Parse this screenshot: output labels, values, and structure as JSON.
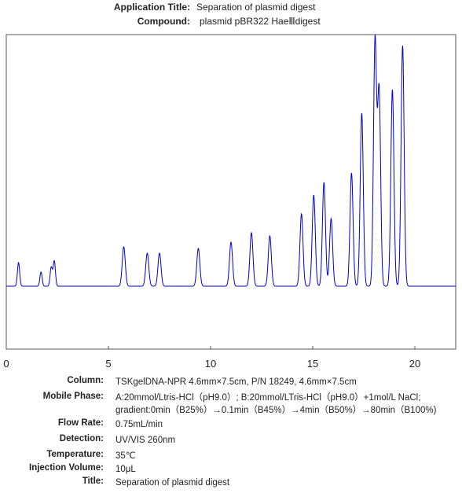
{
  "header": {
    "application_title_label": "Application Title:",
    "application_title_value": "Separation of plasmid digest",
    "compound_label": "Compound:",
    "compound_value": "plasmid pBR322 HaeⅢdigest"
  },
  "chart_data": {
    "type": "line",
    "title": "",
    "xlabel": "",
    "ylabel": "",
    "xlim": [
      0,
      22
    ],
    "ylim": [
      -0.4,
      1.6
    ],
    "x_ticks": [
      0,
      5,
      10,
      15,
      20
    ],
    "x_tick_labels": [
      "0",
      "5",
      "10",
      "15",
      "20"
    ],
    "grid": false,
    "line_color": "#0000cc",
    "series": [
      {
        "peaks": [
          {
            "x": 0.6,
            "y": 0.15
          },
          {
            "x": 1.7,
            "y": 0.09
          },
          {
            "x": 2.2,
            "y": 0.12
          },
          {
            "x": 2.35,
            "y": 0.16
          },
          {
            "x": 5.75,
            "y": 0.25
          },
          {
            "x": 6.9,
            "y": 0.21
          },
          {
            "x": 7.5,
            "y": 0.21
          },
          {
            "x": 9.4,
            "y": 0.24
          },
          {
            "x": 11.0,
            "y": 0.28
          },
          {
            "x": 12.0,
            "y": 0.34
          },
          {
            "x": 12.9,
            "y": 0.32
          },
          {
            "x": 14.45,
            "y": 0.46
          },
          {
            "x": 15.05,
            "y": 0.58
          },
          {
            "x": 15.55,
            "y": 0.66
          },
          {
            "x": 15.9,
            "y": 0.43
          },
          {
            "x": 16.9,
            "y": 0.72
          },
          {
            "x": 17.4,
            "y": 1.1
          },
          {
            "x": 18.05,
            "y": 1.56
          },
          {
            "x": 18.25,
            "y": 1.24
          },
          {
            "x": 18.9,
            "y": 1.25
          },
          {
            "x": 19.4,
            "y": 1.53
          }
        ]
      }
    ]
  },
  "info": {
    "column_label": "Column:",
    "column_value": "TSKgelDNA-NPR 4.6mm×7.5cm, P/N 18249, 4.6mm×7.5cm",
    "mobile_phase_label": "Mobile Phase:",
    "mobile_phase_value_1": "A:20mmol/Ltris-HCl（pH9.0）; B:20mmol/LTris-HCl（pH9.0）+1mol/L NaCl;",
    "mobile_phase_value_2": "gradient:0min（B25%）→0.1min（B45%）→4min（B50%）→80min（B100%)",
    "flow_rate_label": "Flow Rate:",
    "flow_rate_value": "0.75mL/min",
    "detection_label": "Detection:",
    "detection_value": "UV/VIS 260nm",
    "temperature_label": "Temperature:",
    "temperature_value": "35℃",
    "injection_volume_label": "Injection Volume:",
    "injection_volume_value": "10μL",
    "title_label": "Title:",
    "title_value": "Separation of plasmid digest"
  }
}
